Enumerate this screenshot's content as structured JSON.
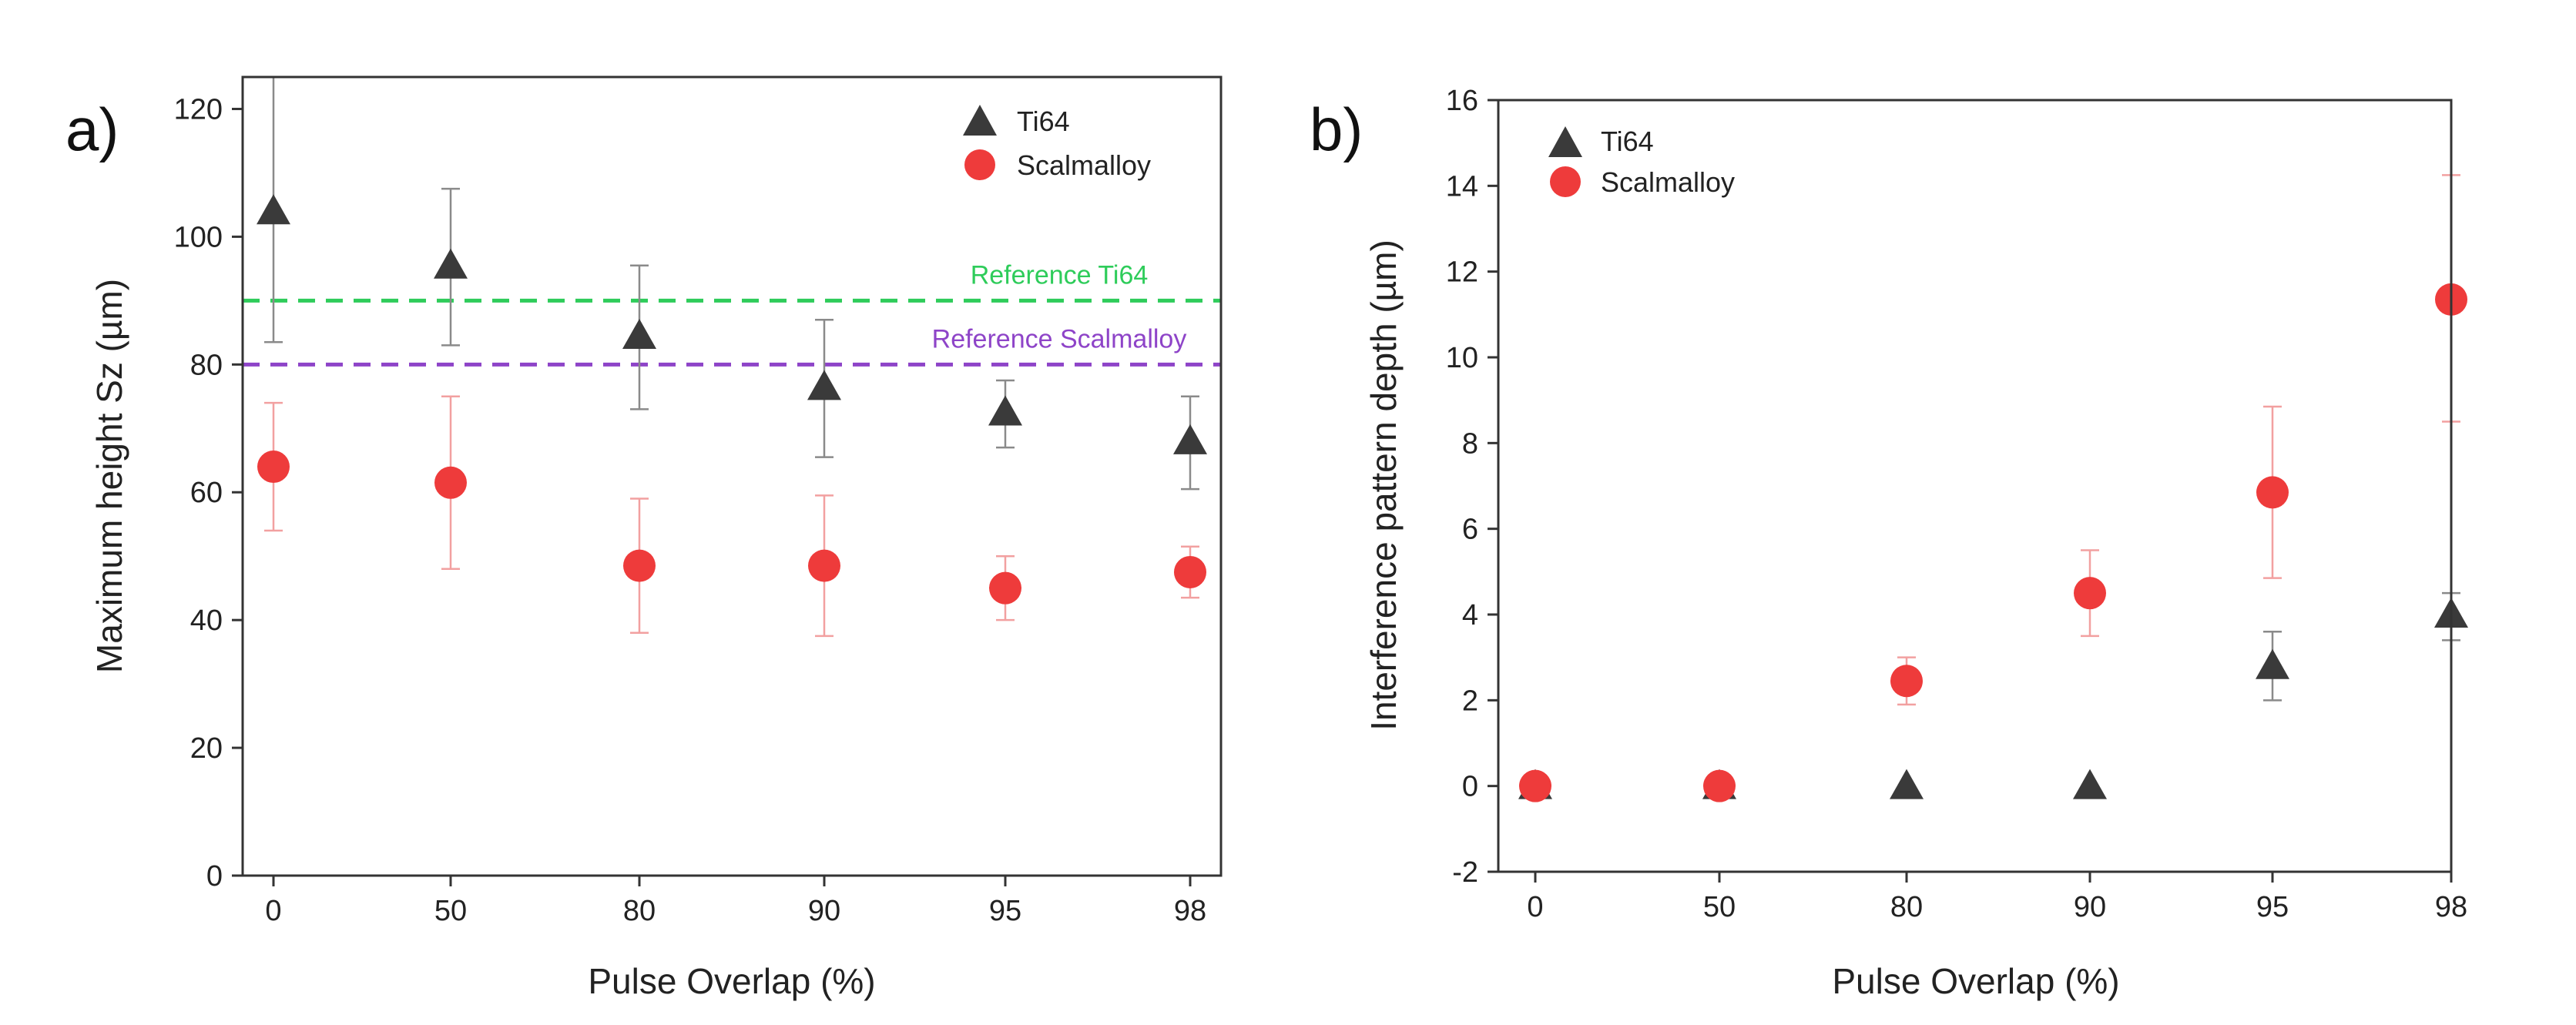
{
  "chart_data": [
    {
      "type": "scatter",
      "panel_label": "a)",
      "xlabel": "Pulse Overlap (%)",
      "ylabel": "Maximum height Sz (µm)",
      "categories": [
        "0",
        "50",
        "80",
        "90",
        "95",
        "98"
      ],
      "ylim": [
        0,
        125
      ],
      "yticks": [
        0,
        20,
        40,
        60,
        80,
        100,
        120
      ],
      "series": [
        {
          "name": "Ti64",
          "marker": "triangle",
          "color": "#3a3a3a",
          "values": [
            104,
            95.5,
            84.5,
            76.5,
            72.5,
            68
          ],
          "err_low": [
            83.5,
            83,
            73,
            65.5,
            67,
            60.5
          ],
          "err_high": [
            125,
            107.5,
            95.5,
            87,
            77.5,
            75
          ]
        },
        {
          "name": "Scalmalloy",
          "marker": "circle",
          "color": "#ee3b3b",
          "values": [
            64,
            61.5,
            48.5,
            48.5,
            45,
            47.5
          ],
          "err_low": [
            54,
            48,
            38,
            37.5,
            40,
            43.5
          ],
          "err_high": [
            74,
            75,
            59,
            59.5,
            50,
            51.5
          ]
        }
      ],
      "reference_lines": [
        {
          "label": "Reference Ti64",
          "value": 90,
          "color": "#2ecc5a"
        },
        {
          "label": "Reference Scalmalloy",
          "value": 80,
          "color": "#8e44c8"
        }
      ],
      "legend": [
        "Ti64",
        "Scalmalloy"
      ],
      "legend_position": "top-right"
    },
    {
      "type": "scatter",
      "panel_label": "b)",
      "xlabel": "Pulse Overlap (%)",
      "ylabel": "Interference pattern depth (µm)",
      "categories": [
        "0",
        "50",
        "80",
        "90",
        "95",
        "98"
      ],
      "ylim": [
        -2,
        16
      ],
      "yticks": [
        -2,
        0,
        2,
        4,
        6,
        8,
        10,
        12,
        14,
        16
      ],
      "series": [
        {
          "name": "Ti64",
          "marker": "triangle",
          "color": "#3a3a3a",
          "values": [
            0,
            0,
            0,
            0,
            2.8,
            4.0
          ],
          "err_low": [
            null,
            null,
            null,
            null,
            2.0,
            3.4
          ],
          "err_high": [
            null,
            null,
            null,
            null,
            3.6,
            4.5
          ]
        },
        {
          "name": "Scalmalloy",
          "marker": "circle",
          "color": "#ee3b3b",
          "values": [
            0,
            0,
            2.45,
            4.5,
            6.85,
            11.35
          ],
          "err_low": [
            null,
            null,
            1.9,
            3.5,
            4.85,
            8.5
          ],
          "err_high": [
            null,
            null,
            3.0,
            5.5,
            8.85,
            14.25
          ]
        }
      ],
      "legend": [
        "Ti64",
        "Scalmalloy"
      ],
      "legend_position": "top-left"
    }
  ]
}
